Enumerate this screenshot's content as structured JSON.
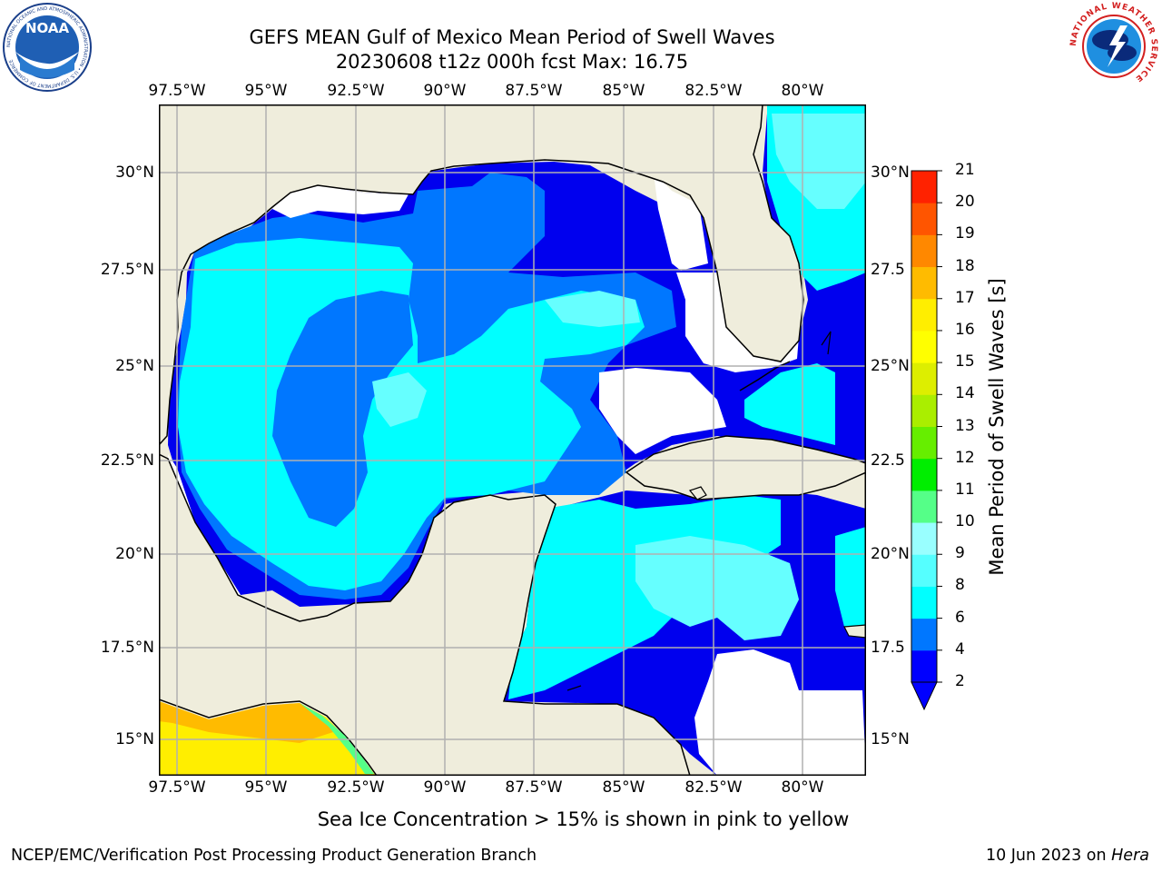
{
  "title": {
    "line1": "GEFS MEAN Gulf of Mexico Mean Period of Swell Waves",
    "line2": "20230608 t12z 000h fcst   Max: 16.75"
  },
  "axes": {
    "lon_ticks": [
      "97.5°W",
      "95°W",
      "92.5°W",
      "90°W",
      "87.5°W",
      "85°W",
      "82.5°W",
      "80°W"
    ],
    "lat_ticks_left": [
      "30°N",
      "27.5°N",
      "25°N",
      "22.5°N",
      "20°N",
      "17.5°N",
      "15°N"
    ],
    "lat_ticks_right": [
      "30°N",
      "27.5",
      "25°N",
      "22.5",
      "20°N",
      "17.5",
      "15°N"
    ],
    "lon_range": [
      -98,
      -78.8
    ],
    "lat_range": [
      14,
      31.8
    ],
    "gridlines": true
  },
  "colorbar": {
    "label": "Mean Period of Swell Waves [s]",
    "levels": [
      "2",
      "4",
      "6",
      "8",
      "9",
      "10",
      "11",
      "12",
      "13",
      "14",
      "15",
      "16",
      "17",
      "18",
      "19",
      "20",
      "21"
    ],
    "colors": [
      "#0000ff",
      "#0077ff",
      "#00ffff",
      "#55ffff",
      "#99ffff",
      "#55ff88",
      "#00ee00",
      "#66ee00",
      "#aaee00",
      "#ddee00",
      "#ffff00",
      "#ffee00",
      "#ffbb00",
      "#ff8800",
      "#ff5500",
      "#ff2200"
    ],
    "extend": "min"
  },
  "annotation": "Sea Ice Concentration > 15% is shown in pink to yellow",
  "footer": {
    "left": "NCEP/EMC/Verification Post Processing Product Generation Branch",
    "date": "10 Jun 2023 on ",
    "machine": "Hera"
  },
  "logos": {
    "noaa": {
      "text": "NOAA",
      "ring": "NATIONAL OCEANIC AND ATMOSPHERIC ADMINISTRATION • U.S. DEPARTMENT OF COMMERCE"
    },
    "nws": {
      "ring": "NATIONAL WEATHER SERVICE"
    }
  },
  "map_colors": {
    "land": "#efeddc",
    "dark_blue": "#0000ee",
    "mid_blue": "#0077ff",
    "cyan": "#00ffff",
    "light_cyan": "#66ffff",
    "ice_yellow": "#ffee00",
    "ice_orange": "#ffbb00"
  }
}
